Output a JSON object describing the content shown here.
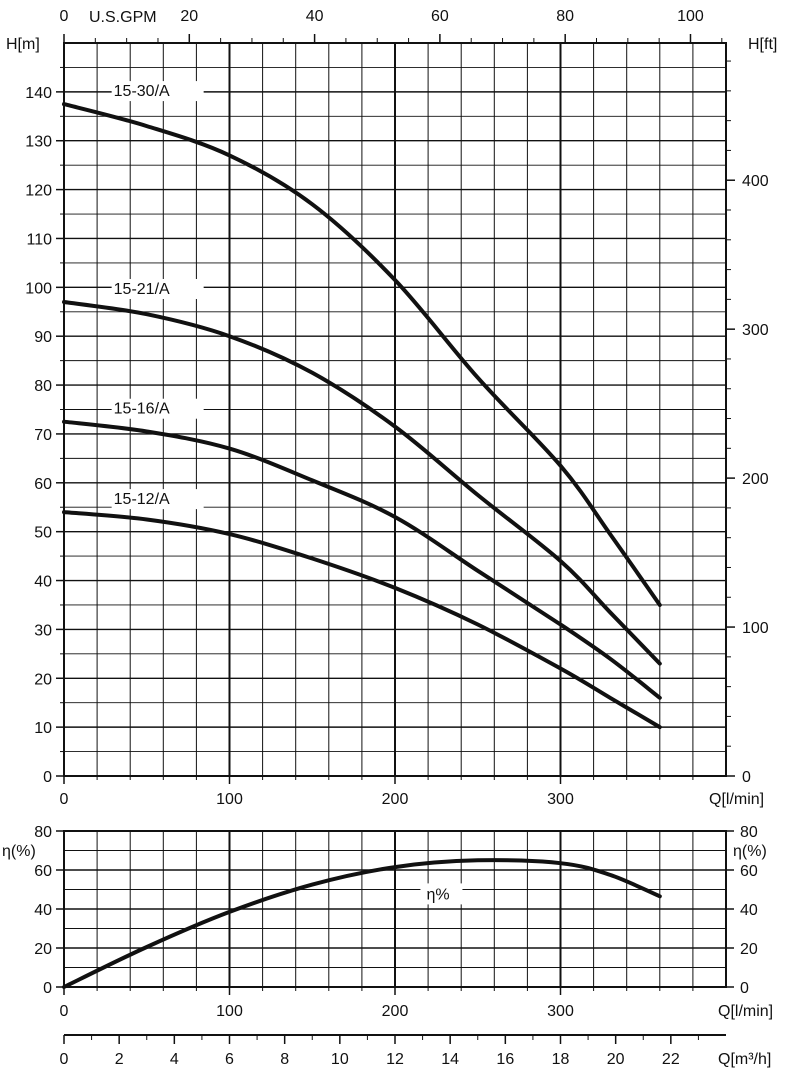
{
  "colors": {
    "background": "#ffffff",
    "ink": "#111111",
    "grid": "#111111"
  },
  "chart_data": [
    {
      "type": "line",
      "panel": "head",
      "x_axis": {
        "label": "Q[l/min]",
        "range": [
          0,
          400
        ],
        "ticks": [
          0,
          100,
          200,
          300
        ]
      },
      "y_axis_left": {
        "label": "H[m]",
        "range": [
          0,
          150
        ],
        "ticks": [
          0,
          10,
          20,
          30,
          40,
          50,
          60,
          70,
          80,
          90,
          100,
          110,
          120,
          130,
          140
        ]
      },
      "y_axis_right": {
        "label": "H[ft]",
        "ticks": [
          0,
          100,
          200,
          300,
          400
        ]
      },
      "x_axis_top": {
        "label": "U.S.GPM",
        "ticks": [
          0,
          20,
          40,
          60,
          80,
          100
        ]
      },
      "grid": true,
      "series": [
        {
          "name": "15-30/A",
          "x": [
            0,
            50,
            100,
            150,
            200,
            250,
            300,
            330,
            360
          ],
          "y": [
            137.5,
            133,
            127,
            117,
            101.5,
            81.5,
            63.5,
            49.5,
            35
          ]
        },
        {
          "name": "15-21/A",
          "x": [
            0,
            50,
            100,
            150,
            200,
            250,
            300,
            330,
            360
          ],
          "y": [
            97,
            94.5,
            90,
            82.5,
            71.5,
            57.5,
            44,
            33.5,
            23
          ]
        },
        {
          "name": "15-16/A",
          "x": [
            0,
            50,
            100,
            150,
            200,
            250,
            300,
            330,
            360
          ],
          "y": [
            72.5,
            70.5,
            67,
            60.5,
            53,
            42,
            31,
            24,
            16
          ]
        },
        {
          "name": "15-12/A",
          "x": [
            0,
            50,
            100,
            150,
            200,
            250,
            300,
            330,
            360
          ],
          "y": [
            54,
            52.5,
            49.5,
            44.5,
            38.5,
            31,
            22,
            16,
            10
          ]
        }
      ]
    },
    {
      "type": "line",
      "panel": "efficiency",
      "x_axis": {
        "label": "Q[l/min]",
        "range": [
          0,
          400
        ],
        "ticks": [
          0,
          100,
          200,
          300
        ]
      },
      "x_axis_m3h": {
        "label": "Q[m³/h]",
        "ticks": [
          0,
          2,
          4,
          6,
          8,
          10,
          12,
          14,
          16,
          18,
          20,
          22
        ]
      },
      "y_axis_left": {
        "label": "η(%)",
        "range": [
          0,
          80
        ],
        "ticks": [
          0,
          20,
          40,
          60,
          80
        ]
      },
      "y_axis_right": {
        "label": "η(%)",
        "ticks": [
          0,
          20,
          40,
          60,
          80
        ]
      },
      "grid": true,
      "series": [
        {
          "name": "η%",
          "x": [
            0,
            50,
            100,
            150,
            200,
            250,
            300,
            330,
            360
          ],
          "y": [
            0,
            20.5,
            38.5,
            52.5,
            61.5,
            65,
            63.5,
            57.5,
            46.5
          ]
        }
      ]
    }
  ]
}
